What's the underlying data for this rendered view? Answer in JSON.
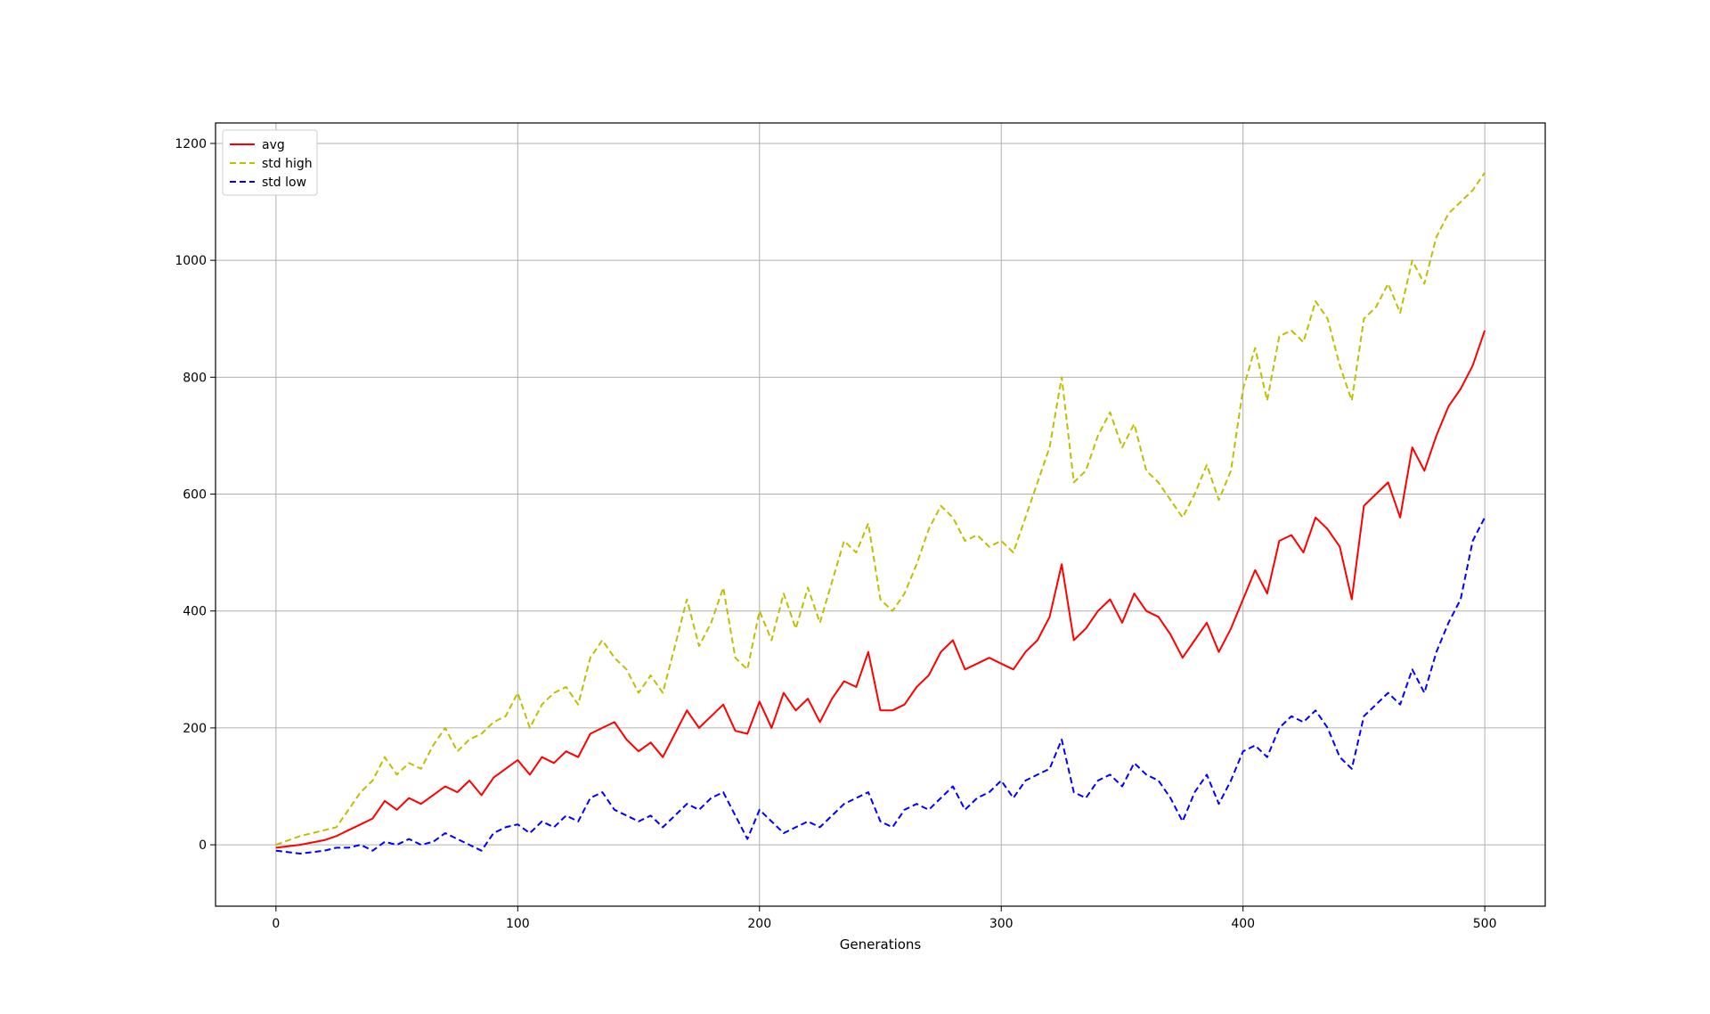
{
  "chart_data": {
    "type": "line",
    "title": "",
    "xlabel": "Generations",
    "ylabel": "",
    "xlim": [
      -25,
      525
    ],
    "ylim": [
      -105,
      1235
    ],
    "x_ticks": [
      0,
      100,
      200,
      300,
      400,
      500
    ],
    "y_ticks": [
      0,
      200,
      400,
      600,
      800,
      1000,
      1200
    ],
    "grid": true,
    "legend_position": "upper-left",
    "series": [
      {
        "name": "avg",
        "color": "#ff0000",
        "style": "solid",
        "x": [
          0,
          10,
          20,
          25,
          30,
          35,
          40,
          45,
          50,
          55,
          60,
          65,
          70,
          75,
          80,
          85,
          90,
          95,
          100,
          105,
          110,
          115,
          120,
          125,
          130,
          135,
          140,
          145,
          150,
          155,
          160,
          165,
          170,
          175,
          180,
          185,
          190,
          195,
          200,
          205,
          210,
          215,
          220,
          225,
          230,
          235,
          240,
          245,
          250,
          255,
          260,
          265,
          270,
          275,
          280,
          285,
          290,
          295,
          300,
          305,
          310,
          315,
          320,
          325,
          330,
          335,
          340,
          345,
          350,
          355,
          360,
          365,
          370,
          375,
          380,
          385,
          390,
          395,
          400,
          405,
          410,
          415,
          420,
          425,
          430,
          435,
          440,
          445,
          450,
          455,
          460,
          465,
          470,
          475,
          480,
          485,
          490,
          495,
          500
        ],
        "values": [
          -5,
          0,
          8,
          15,
          25,
          35,
          45,
          75,
          60,
          80,
          70,
          85,
          100,
          90,
          110,
          85,
          115,
          130,
          145,
          120,
          150,
          140,
          160,
          150,
          190,
          200,
          210,
          180,
          160,
          175,
          150,
          190,
          230,
          200,
          220,
          240,
          195,
          190,
          245,
          200,
          260,
          230,
          250,
          210,
          250,
          280,
          270,
          330,
          230,
          230,
          240,
          270,
          290,
          330,
          350,
          300,
          310,
          320,
          310,
          300,
          330,
          350,
          390,
          480,
          350,
          370,
          400,
          420,
          380,
          430,
          400,
          390,
          360,
          320,
          350,
          380,
          330,
          370,
          420,
          470,
          430,
          520,
          530,
          500,
          560,
          540,
          510,
          420,
          580,
          600,
          620,
          560,
          680,
          640,
          700,
          750,
          780,
          820,
          880
        ]
      },
      {
        "name": "std high",
        "color": "#bfbf00",
        "style": "dashed",
        "x": [
          0,
          10,
          20,
          25,
          30,
          35,
          40,
          45,
          50,
          55,
          60,
          65,
          70,
          75,
          80,
          85,
          90,
          95,
          100,
          105,
          110,
          115,
          120,
          125,
          130,
          135,
          140,
          145,
          150,
          155,
          160,
          165,
          170,
          175,
          180,
          185,
          190,
          195,
          200,
          205,
          210,
          215,
          220,
          225,
          230,
          235,
          240,
          245,
          250,
          255,
          260,
          265,
          270,
          275,
          280,
          285,
          290,
          295,
          300,
          305,
          310,
          315,
          320,
          325,
          330,
          335,
          340,
          345,
          350,
          355,
          360,
          365,
          370,
          375,
          380,
          385,
          390,
          395,
          400,
          405,
          410,
          415,
          420,
          425,
          430,
          435,
          440,
          445,
          450,
          455,
          460,
          465,
          470,
          475,
          480,
          485,
          490,
          495,
          500
        ],
        "values": [
          0,
          15,
          25,
          30,
          60,
          90,
          110,
          150,
          120,
          140,
          130,
          170,
          200,
          160,
          180,
          190,
          210,
          220,
          260,
          200,
          240,
          260,
          270,
          240,
          320,
          350,
          320,
          300,
          260,
          290,
          260,
          340,
          420,
          340,
          380,
          440,
          320,
          300,
          400,
          350,
          430,
          370,
          440,
          380,
          450,
          520,
          500,
          550,
          420,
          400,
          430,
          480,
          540,
          580,
          560,
          520,
          530,
          510,
          520,
          500,
          560,
          620,
          680,
          800,
          620,
          640,
          700,
          740,
          680,
          720,
          640,
          620,
          590,
          560,
          600,
          650,
          590,
          640,
          780,
          850,
          760,
          870,
          880,
          860,
          930,
          900,
          820,
          760,
          900,
          920,
          960,
          910,
          1000,
          960,
          1040,
          1080,
          1100,
          1120,
          1150
        ]
      },
      {
        "name": "std low",
        "color": "#0000ff",
        "style": "dashed",
        "x": [
          0,
          10,
          20,
          25,
          30,
          35,
          40,
          45,
          50,
          55,
          60,
          65,
          70,
          75,
          80,
          85,
          90,
          95,
          100,
          105,
          110,
          115,
          120,
          125,
          130,
          135,
          140,
          145,
          150,
          155,
          160,
          165,
          170,
          175,
          180,
          185,
          190,
          195,
          200,
          205,
          210,
          215,
          220,
          225,
          230,
          235,
          240,
          245,
          250,
          255,
          260,
          265,
          270,
          275,
          280,
          285,
          290,
          295,
          300,
          305,
          310,
          315,
          320,
          325,
          330,
          335,
          340,
          345,
          350,
          355,
          360,
          365,
          370,
          375,
          380,
          385,
          390,
          395,
          400,
          405,
          410,
          415,
          420,
          425,
          430,
          435,
          440,
          445,
          450,
          455,
          460,
          465,
          470,
          475,
          480,
          485,
          490,
          495,
          500
        ],
        "values": [
          -10,
          -15,
          -10,
          -5,
          -5,
          0,
          -10,
          5,
          0,
          10,
          0,
          5,
          20,
          10,
          0,
          -10,
          20,
          30,
          35,
          20,
          40,
          30,
          50,
          40,
          80,
          90,
          60,
          50,
          40,
          50,
          30,
          50,
          70,
          60,
          80,
          90,
          50,
          10,
          60,
          40,
          20,
          30,
          40,
          30,
          50,
          70,
          80,
          90,
          40,
          30,
          60,
          70,
          60,
          80,
          100,
          60,
          80,
          90,
          110,
          80,
          110,
          120,
          130,
          180,
          90,
          80,
          110,
          120,
          100,
          140,
          120,
          110,
          80,
          40,
          90,
          120,
          70,
          110,
          160,
          170,
          150,
          200,
          220,
          210,
          230,
          200,
          150,
          130,
          220,
          240,
          260,
          240,
          300,
          260,
          330,
          380,
          420,
          520,
          560
        ]
      }
    ]
  }
}
